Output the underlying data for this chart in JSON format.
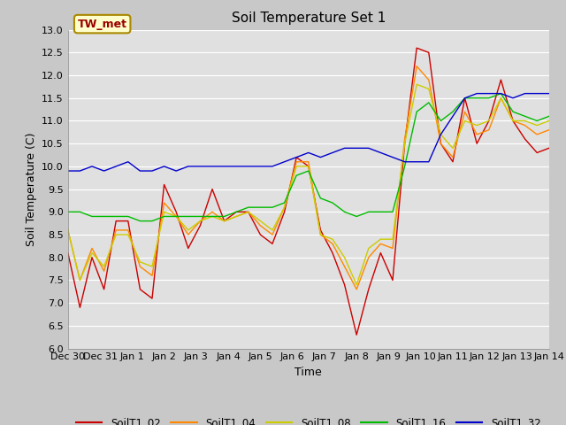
{
  "title": "Soil Temperature Set 1",
  "xlabel": "Time",
  "ylabel": "Soil Temperature (C)",
  "ylim": [
    6.0,
    13.0
  ],
  "yticks": [
    6.0,
    6.5,
    7.0,
    7.5,
    8.0,
    8.5,
    9.0,
    9.5,
    10.0,
    10.5,
    11.0,
    11.5,
    12.0,
    12.5,
    13.0
  ],
  "fig_bg_color": "#c8c8c8",
  "plot_bg_color": "#e0e0e0",
  "annotation_label": "TW_met",
  "series_colors": {
    "SoilT1_02": "#cc0000",
    "SoilT1_04": "#ff8800",
    "SoilT1_08": "#cccc00",
    "SoilT1_16": "#00bb00",
    "SoilT1_32": "#0000cc"
  },
  "xtick_labels": [
    "Dec 30",
    "Dec 31",
    "Jan 1",
    "Jan 2",
    "Jan 3",
    "Jan 4",
    "Jan 5",
    "Jan 6",
    "Jan 7",
    "Jan 8",
    "Jan 9",
    "Jan 10",
    "Jan 11",
    "Jan 12",
    "Jan 13",
    "Jan 14"
  ],
  "SoilT1_02": [
    8.1,
    6.9,
    8.0,
    7.3,
    8.8,
    8.8,
    7.3,
    7.1,
    9.6,
    9.0,
    8.2,
    8.7,
    9.5,
    8.8,
    9.0,
    9.0,
    8.5,
    8.3,
    9.0,
    10.2,
    10.0,
    8.6,
    8.1,
    7.4,
    6.3,
    7.3,
    8.1,
    7.5,
    10.5,
    12.6,
    12.5,
    10.5,
    10.1,
    11.5,
    10.5,
    11.0,
    11.9,
    11.0,
    10.6,
    10.3,
    10.4
  ],
  "SoilT1_04": [
    8.6,
    7.5,
    8.2,
    7.7,
    8.6,
    8.6,
    7.8,
    7.6,
    9.2,
    8.9,
    8.5,
    8.8,
    9.0,
    8.8,
    8.9,
    9.0,
    8.7,
    8.5,
    9.1,
    10.1,
    10.1,
    8.5,
    8.3,
    7.8,
    7.3,
    8.0,
    8.3,
    8.2,
    10.6,
    12.2,
    11.9,
    10.5,
    10.2,
    11.2,
    10.7,
    10.8,
    11.5,
    11.0,
    10.9,
    10.7,
    10.8
  ],
  "SoilT1_08": [
    8.6,
    7.5,
    8.1,
    7.8,
    8.5,
    8.5,
    7.9,
    7.8,
    9.0,
    8.9,
    8.6,
    8.8,
    8.9,
    8.8,
    8.9,
    9.0,
    8.8,
    8.6,
    9.1,
    10.0,
    10.0,
    8.5,
    8.4,
    8.0,
    7.4,
    8.2,
    8.4,
    8.4,
    10.5,
    11.8,
    11.7,
    10.7,
    10.4,
    11.0,
    10.9,
    11.0,
    11.5,
    11.0,
    11.0,
    10.9,
    11.0
  ],
  "SoilT1_16": [
    9.0,
    9.0,
    8.9,
    8.9,
    8.9,
    8.9,
    8.8,
    8.8,
    8.9,
    8.9,
    8.9,
    8.9,
    8.9,
    8.9,
    9.0,
    9.1,
    9.1,
    9.1,
    9.2,
    9.8,
    9.9,
    9.3,
    9.2,
    9.0,
    8.9,
    9.0,
    9.0,
    9.0,
    10.0,
    11.2,
    11.4,
    11.0,
    11.2,
    11.5,
    11.5,
    11.5,
    11.6,
    11.2,
    11.1,
    11.0,
    11.1
  ],
  "SoilT1_32": [
    9.9,
    9.9,
    10.0,
    9.9,
    10.0,
    10.1,
    9.9,
    9.9,
    10.0,
    9.9,
    10.0,
    10.0,
    10.0,
    10.0,
    10.0,
    10.0,
    10.0,
    10.0,
    10.1,
    10.2,
    10.3,
    10.2,
    10.3,
    10.4,
    10.4,
    10.4,
    10.3,
    10.2,
    10.1,
    10.1,
    10.1,
    10.7,
    11.1,
    11.5,
    11.6,
    11.6,
    11.6,
    11.5,
    11.6,
    11.6,
    11.6
  ]
}
